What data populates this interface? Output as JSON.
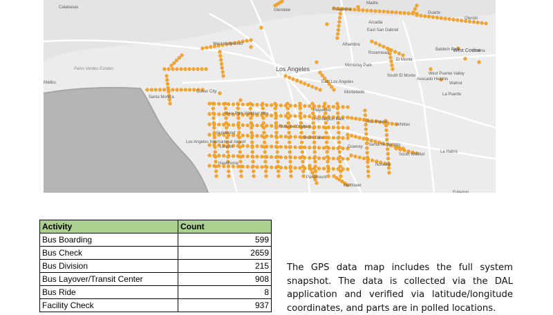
{
  "map": {
    "places": [
      {
        "text": "Calabasas"
      },
      {
        "text": "Glendale"
      },
      {
        "text": "Pasadena"
      },
      {
        "text": "Madre"
      },
      {
        "text": "Duarte"
      },
      {
        "text": "Glendo"
      },
      {
        "text": "Arcadia"
      },
      {
        "text": "East San Gabriel"
      },
      {
        "text": "Alhambra"
      },
      {
        "text": "Rosemead"
      },
      {
        "text": "Baldwin Park"
      },
      {
        "text": "West Covina"
      },
      {
        "text": "Covina"
      },
      {
        "text": "El Monte"
      },
      {
        "text": "West Hollywood"
      },
      {
        "text": "Los Angeles"
      },
      {
        "text": "Monterey Park"
      },
      {
        "text": "South El Monte"
      },
      {
        "text": "West Puente Valley"
      },
      {
        "text": "Avocado Heights"
      },
      {
        "text": "Walnut"
      },
      {
        "text": "East Los Angeles"
      },
      {
        "text": "Montebello"
      },
      {
        "text": "La Puente"
      },
      {
        "text": "Culver City"
      },
      {
        "text": "Malibu"
      },
      {
        "text": "Palos Verdes Estates"
      },
      {
        "text": "Santa Monica"
      },
      {
        "text": "View Park Windsor Hills"
      },
      {
        "text": "Maywood"
      },
      {
        "text": "Huntington Park"
      },
      {
        "text": "Pico Rivera"
      },
      {
        "text": "Whittier"
      },
      {
        "text": "Inglewood"
      },
      {
        "text": "Florence Graham"
      },
      {
        "text": "Los Angeles International Airport"
      },
      {
        "text": "South Gate"
      },
      {
        "text": "Lennox"
      },
      {
        "text": "Downey"
      },
      {
        "text": "La Habra"
      },
      {
        "text": "Santa Fe Springs"
      },
      {
        "text": "South Whittier"
      },
      {
        "text": "Hawthorne"
      },
      {
        "text": "Norwalk"
      },
      {
        "text": "Bellflower"
      },
      {
        "text": "Paramount"
      },
      {
        "text": "Fullerton"
      }
    ]
  },
  "table": {
    "headers": [
      "Activity",
      "Count"
    ],
    "rows": [
      {
        "activity": "Bus Boarding",
        "count": "599"
      },
      {
        "activity": "Bus Check",
        "count": "2659"
      },
      {
        "activity": "Bus Division",
        "count": "215"
      },
      {
        "activity": "Bus Layover/Transit Center",
        "count": "908"
      },
      {
        "activity": "Bus Ride",
        "count": "8"
      },
      {
        "activity": "Facility Check",
        "count": "937"
      }
    ]
  },
  "paragraph": "The GPS data map includes the full system snapshot. The data is collected via the DAL application and verified via latitude/longitude coordinates, and parts are in polled locations.",
  "colors": {
    "map_land": "#ececec",
    "map_water": "#b5b5b5",
    "map_roads": "#ffffff",
    "point_fill": "#f5a52c",
    "point_stroke": "#e08a10",
    "table_header": "#a9d08e"
  }
}
